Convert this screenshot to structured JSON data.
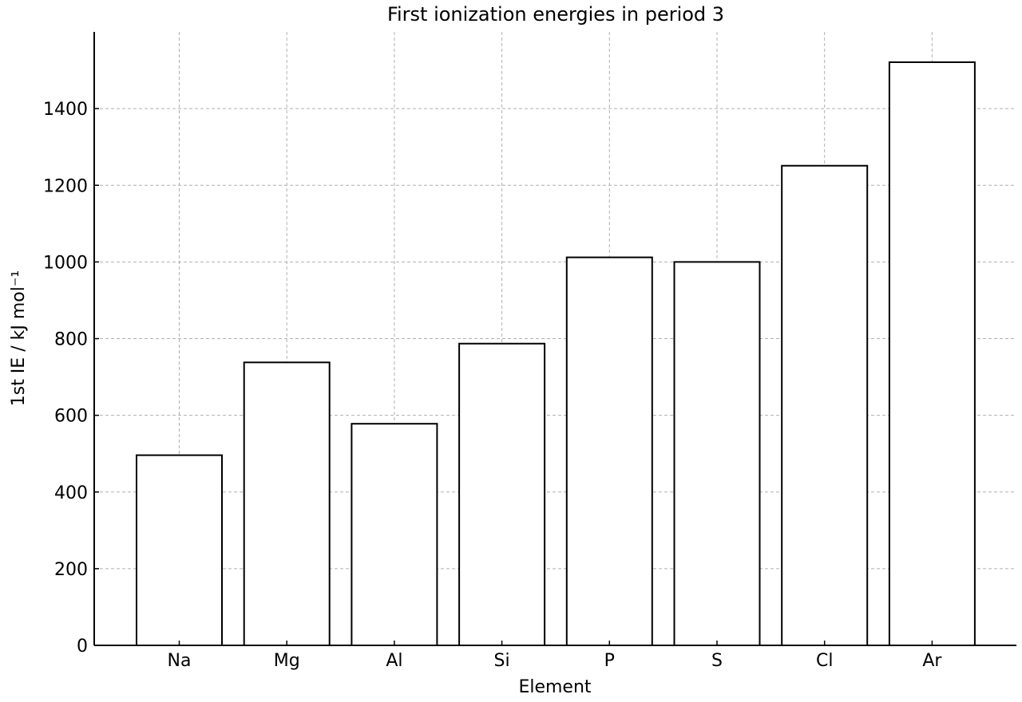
{
  "chart_data": {
    "type": "bar",
    "title": "First ionization energies in period 3",
    "xlabel": "Element",
    "ylabel": "1st IE / kJ mol⁻¹",
    "categories": [
      "Na",
      "Mg",
      "Al",
      "Si",
      "P",
      "S",
      "Cl",
      "Ar"
    ],
    "values": [
      496,
      738,
      578,
      787,
      1012,
      1000,
      1251,
      1521
    ],
    "ylim": [
      0,
      1600
    ],
    "yticks": [
      0,
      200,
      400,
      600,
      800,
      1000,
      1200,
      1400
    ],
    "grid": true,
    "bar_fill": "#ffffff",
    "bar_edge": "#000000"
  }
}
